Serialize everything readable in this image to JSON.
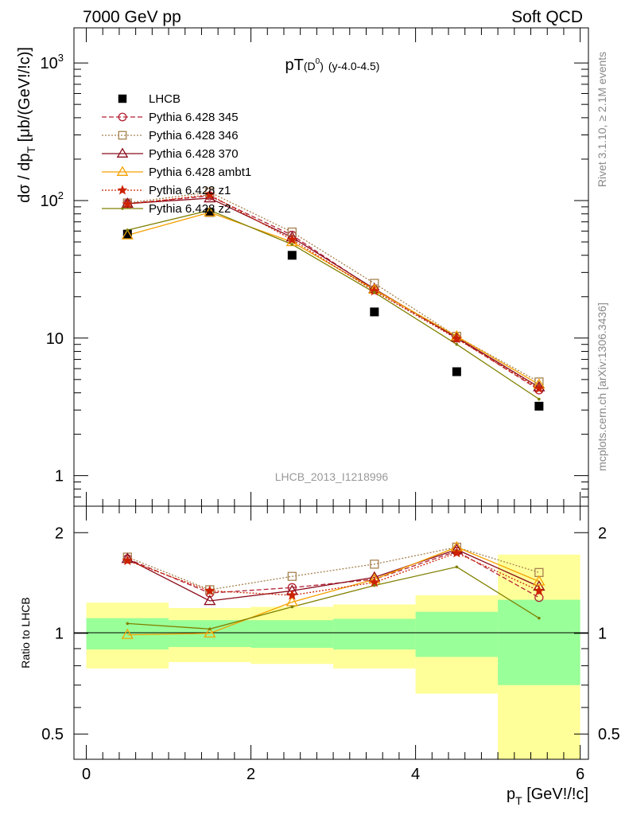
{
  "header": {
    "energy_label": "7000 GeV pp",
    "process_label": "Soft QCD"
  },
  "side": {
    "rivet": "Rivet 3.1.10, ≥ 2.1M events",
    "mcplots": "mcplots.cern.ch [arXiv:1306.3436]"
  },
  "watermark": "LHCB_2013_I1218996",
  "chart_data": [
    {
      "type": "line",
      "title_main": "pT",
      "title_sub": "(D",
      "title_sup": "0",
      "title_close": ")",
      "title_range": "(y-4.0-4.5)",
      "ylabel": "dσ / dp",
      "ylabel_sub": "T",
      "ylabel_unit": " [μb/(GeV!/!c)]",
      "y_scale": "log",
      "ylim": [
        0.6,
        1800
      ],
      "xlim": [
        -0.15,
        6.1
      ],
      "x_tick_labels": [
        "0",
        "2",
        "4",
        "6"
      ],
      "y_tick_labels": [
        "1",
        "10",
        "10",
        "10"
      ],
      "y_tick_exps": [
        "",
        "",
        "2",
        "3"
      ],
      "legend_position": "top-left",
      "x": [
        0.5,
        1.5,
        2.5,
        3.5,
        4.5,
        5.5
      ],
      "series": [
        {
          "name": "LHCB",
          "color": "#000000",
          "marker": "filled-square",
          "values": [
            57,
            82,
            40,
            15.5,
            5.7,
            3.2
          ]
        },
        {
          "name": "Pythia 6.428 345",
          "color": "#b22234",
          "marker": "circle",
          "dash": "dashed",
          "values": [
            95,
            108,
            56,
            22.5,
            10,
            4.2
          ]
        },
        {
          "name": "Pythia 6.428 346",
          "color": "#a6814f",
          "marker": "square",
          "dash": "dotted",
          "values": [
            96,
            115,
            59,
            25,
            10.3,
            4.8
          ]
        },
        {
          "name": "Pythia 6.428 370",
          "color": "#8b0c1c",
          "marker": "triangle",
          "dash": "solid",
          "values": [
            95,
            104,
            54,
            22.8,
            10.1,
            4.4
          ]
        },
        {
          "name": "Pythia 6.428 ambt1",
          "color": "#f5a000",
          "marker": "triangle",
          "dash": "solid",
          "values": [
            56,
            82,
            50,
            22.5,
            10.3,
            4.6
          ]
        },
        {
          "name": "Pythia 6.428 z1",
          "color": "#cc2200",
          "marker": "star",
          "dash": "dotted",
          "values": [
            94,
            110,
            52,
            22,
            9.9,
            4.3
          ]
        },
        {
          "name": "Pythia 6.428 z2",
          "color": "#808000",
          "marker": "dot",
          "dash": "solid",
          "values": [
            61,
            85,
            48,
            21.5,
            9,
            3.6
          ]
        }
      ]
    },
    {
      "type": "line",
      "ylabel": "Ratio to LHCB",
      "y_scale": "log",
      "ylim": [
        0.42,
        2.4
      ],
      "xlim": [
        -0.15,
        6.1
      ],
      "x_tick_labels": [
        "0",
        "2",
        "4",
        "6"
      ],
      "y_tick_labels": [
        "0.5",
        "1",
        "2"
      ],
      "x_axis_label": "p",
      "x_axis_sub": "T",
      "x_axis_unit": " [GeV!/!c]",
      "x": [
        0.5,
        1.5,
        2.5,
        3.5,
        4.5,
        5.5
      ],
      "bands": {
        "bins": [
          [
            0,
            1
          ],
          [
            1,
            2
          ],
          [
            2,
            3
          ],
          [
            3,
            4
          ],
          [
            4,
            5
          ],
          [
            5,
            6
          ]
        ],
        "inner": [
          [
            0.895,
            1.11
          ],
          [
            0.91,
            1.095
          ],
          [
            0.905,
            1.095
          ],
          [
            0.895,
            1.105
          ],
          [
            0.85,
            1.16
          ],
          [
            0.7,
            1.26
          ]
        ],
        "outer": [
          [
            0.785,
            1.235
          ],
          [
            0.82,
            1.19
          ],
          [
            0.81,
            1.2
          ],
          [
            0.785,
            1.22
          ],
          [
            0.66,
            1.3
          ],
          [
            0.42,
            1.72
          ]
        ],
        "inner_color": "#99ff99",
        "outer_color": "#ffff99"
      },
      "series": [
        {
          "name": "Pythia 6.428 345",
          "values": [
            1.67,
            1.32,
            1.37,
            1.45,
            1.76,
            1.28
          ]
        },
        {
          "name": "Pythia 6.428 346",
          "values": [
            1.69,
            1.35,
            1.48,
            1.61,
            1.81,
            1.52
          ]
        },
        {
          "name": "Pythia 6.428 370",
          "values": [
            1.67,
            1.25,
            1.34,
            1.47,
            1.78,
            1.38
          ]
        },
        {
          "name": "Pythia 6.428 ambt1",
          "values": [
            0.99,
            1.0,
            1.24,
            1.45,
            1.81,
            1.43
          ]
        },
        {
          "name": "Pythia 6.428 z1",
          "values": [
            1.65,
            1.34,
            1.3,
            1.42,
            1.74,
            1.34
          ]
        },
        {
          "name": "Pythia 6.428 z2",
          "values": [
            1.07,
            1.03,
            1.2,
            1.39,
            1.58,
            1.11
          ]
        }
      ]
    }
  ]
}
